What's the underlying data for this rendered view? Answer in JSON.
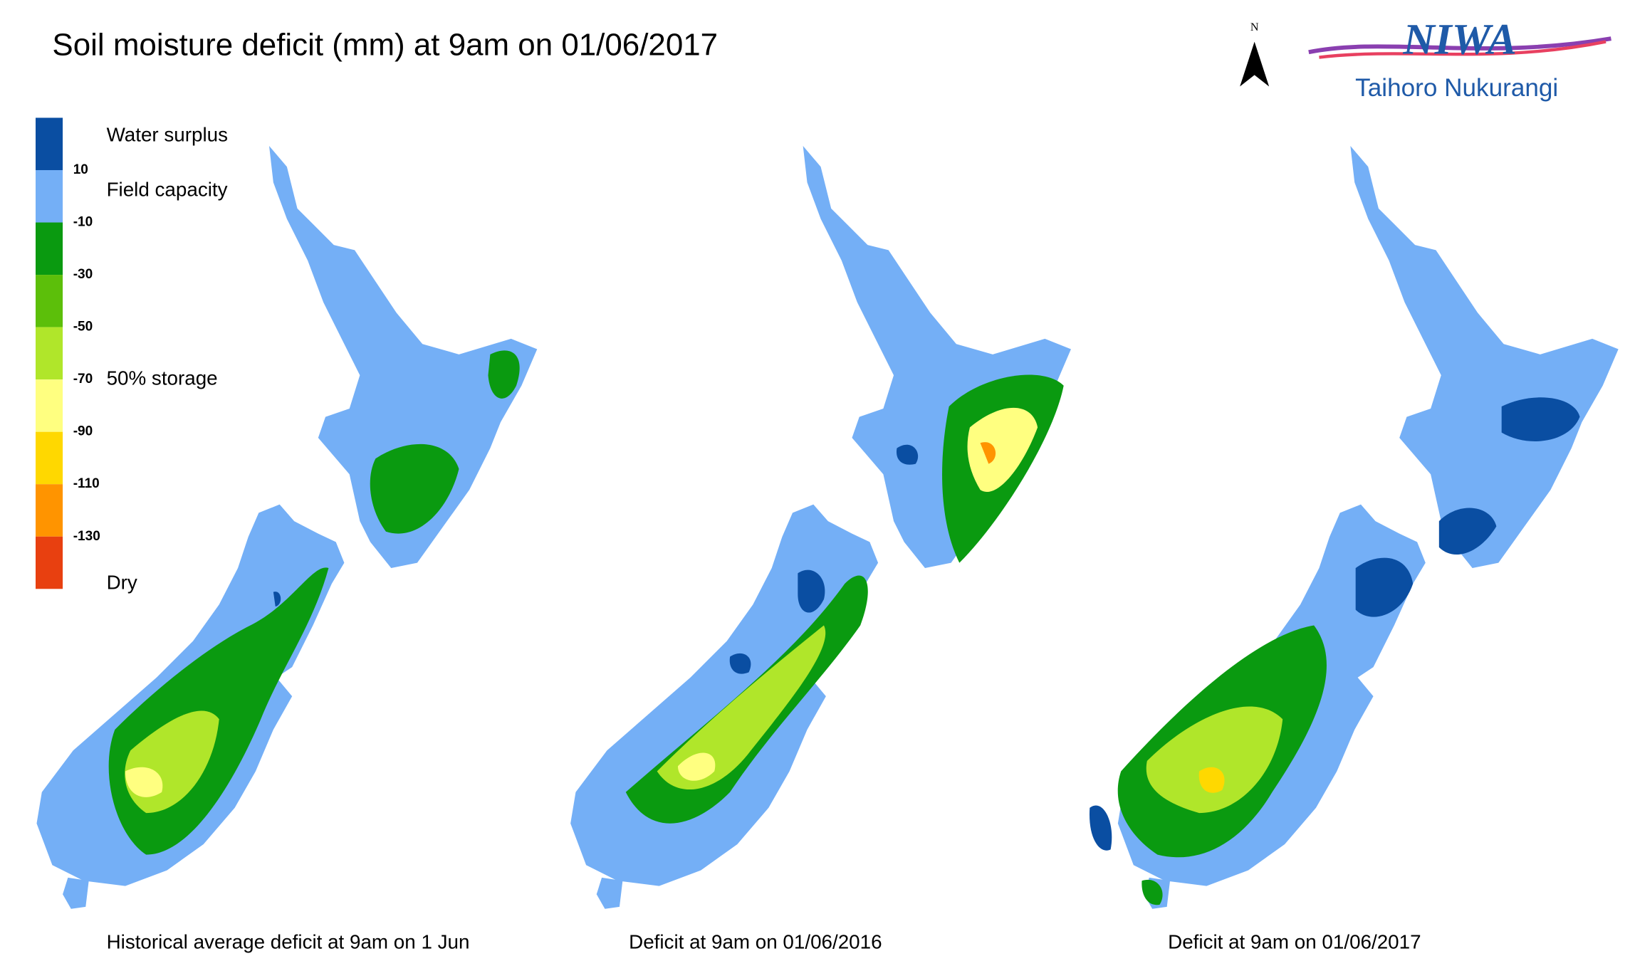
{
  "title": "Soil moisture deficit (mm) at 9am on 01/06/2017",
  "north_label": "N",
  "logo": {
    "name": "NIWA",
    "subtitle": "Taihoro Nukurangi"
  },
  "legend": {
    "colors": [
      "#0a4ea2",
      "#74aff6",
      "#0a9a10",
      "#5cbf0a",
      "#b0e62a",
      "#ffff80",
      "#ffd800",
      "#ff9400",
      "#e84010"
    ],
    "breaks": [
      10,
      -10,
      -30,
      -50,
      -70,
      -90,
      -110,
      -130
    ],
    "labels": [
      "Water surplus",
      "Field capacity",
      "50% storage",
      "Dry"
    ]
  },
  "captions": [
    "Historical average deficit at 9am on 1 Jun",
    "Deficit at 9am on 01/06/2016",
    "Deficit at 9am on 01/06/2017"
  ]
}
